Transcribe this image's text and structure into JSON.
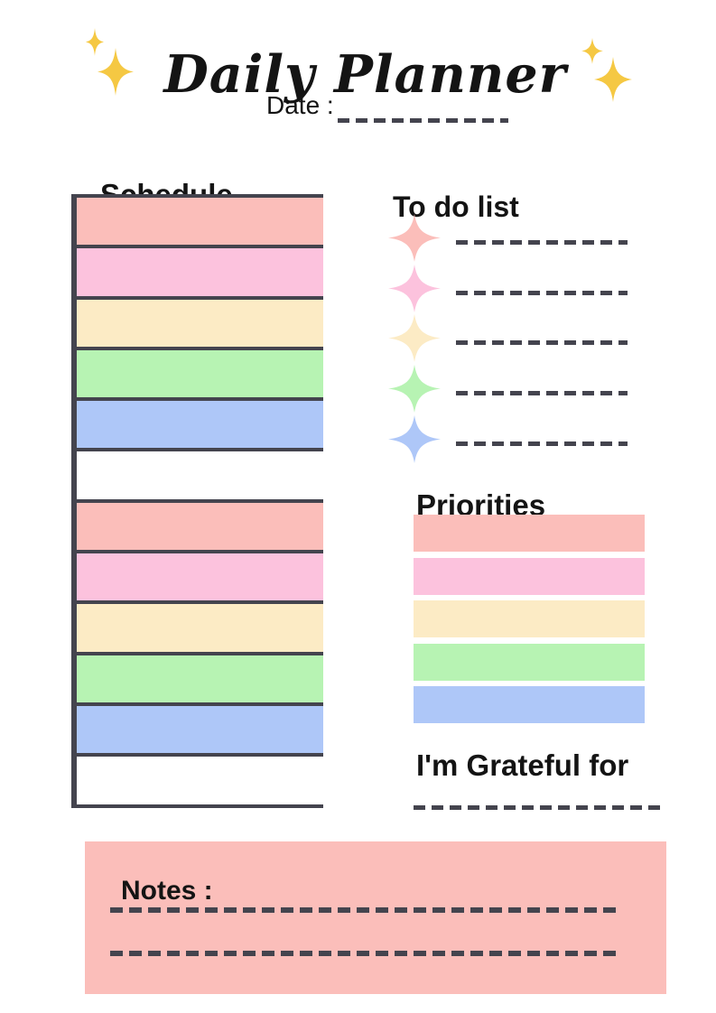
{
  "palette": {
    "salmon": "#FBBEBA",
    "pink": "#FCC2DD",
    "cream": "#FCEBC5",
    "green": "#B7F3B3",
    "blue": "#AEC7F8",
    "white": "#FFFFFF",
    "gold": "#F5C843",
    "line": "#44444E",
    "text": "#141414"
  },
  "header": {
    "title": "Daily Planner",
    "date_label": "Date :"
  },
  "schedule": {
    "heading": "Schedule",
    "rows": [
      "salmon",
      "pink",
      "cream",
      "green",
      "blue",
      "white",
      "salmon",
      "pink",
      "cream",
      "green",
      "blue",
      "white"
    ]
  },
  "todo": {
    "heading": "To do list",
    "items": [
      {
        "star_color": "salmon"
      },
      {
        "star_color": "pink"
      },
      {
        "star_color": "cream"
      },
      {
        "star_color": "green"
      },
      {
        "star_color": "blue"
      }
    ]
  },
  "priorities": {
    "heading": "Priorities",
    "bars": [
      "salmon",
      "pink",
      "cream",
      "green",
      "blue"
    ]
  },
  "grateful": {
    "heading": "I'm Grateful for"
  },
  "notes": {
    "heading": "Notes :"
  }
}
